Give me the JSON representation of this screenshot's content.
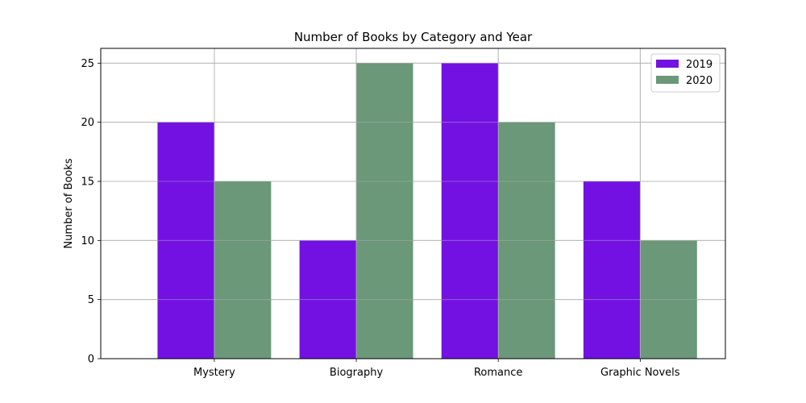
{
  "chart_data": {
    "type": "bar",
    "title": "Number of Books by Category and Year",
    "xlabel": "",
    "ylabel": "Number of Books",
    "categories": [
      "Mystery",
      "Biography",
      "Romance",
      "Graphic Novels"
    ],
    "series": [
      {
        "name": "2019",
        "values": [
          20,
          10,
          25,
          15
        ],
        "color": "#7311e3"
      },
      {
        "name": "2020",
        "values": [
          15,
          25,
          20,
          10
        ],
        "color": "#6a9878"
      }
    ],
    "ylim": [
      0,
      26.25
    ],
    "yticks": [
      0,
      5,
      10,
      15,
      20,
      25
    ],
    "grid": true,
    "legend_position": "top-right"
  }
}
